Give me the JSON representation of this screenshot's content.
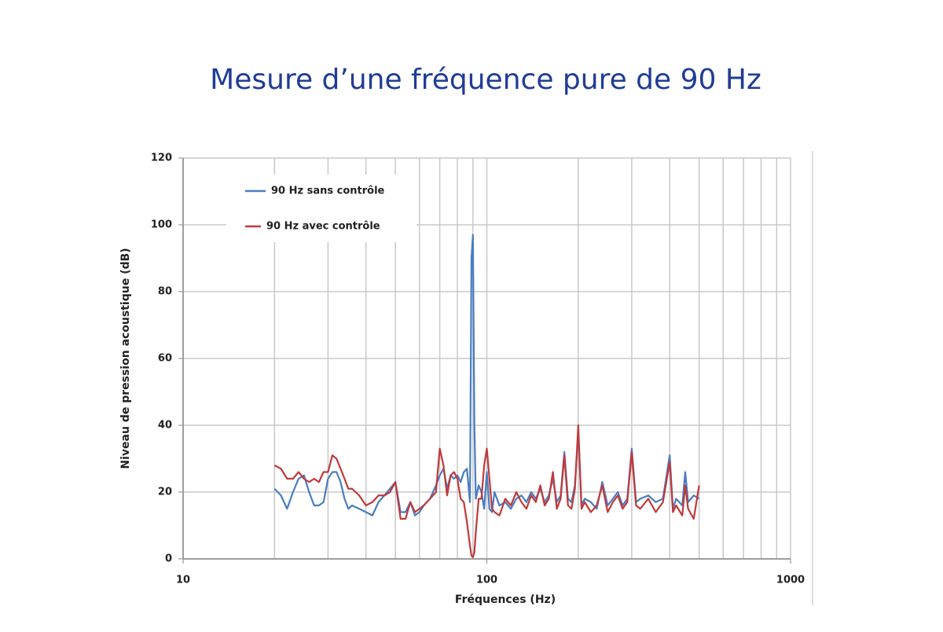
{
  "chart_data": {
    "type": "line",
    "title": "Mesure d’une fréquence pure de 90 Hz",
    "xlabel": "Fréquences (Hz)",
    "ylabel": "Niveau de pression acoustique  (dB)",
    "xscale": "log",
    "xlim": [
      10,
      1000
    ],
    "xticks": [
      10,
      100,
      1000
    ],
    "xgrid_minor": [
      20,
      30,
      40,
      50,
      60,
      70,
      80,
      90,
      200,
      300,
      400,
      500,
      600,
      700,
      800,
      900
    ],
    "ylim": [
      0,
      120
    ],
    "yticks": [
      0,
      20,
      40,
      60,
      80,
      100,
      120
    ],
    "grid": true,
    "legend": "upper left",
    "x": [
      20,
      21,
      22,
      23,
      24,
      25,
      26,
      27,
      28,
      29,
      30,
      31,
      32,
      33,
      34,
      35,
      36,
      38,
      40,
      42,
      44,
      46,
      48,
      50,
      52,
      54,
      56,
      58,
      60,
      62,
      65,
      68,
      70,
      72,
      74,
      76,
      78,
      80,
      82,
      84,
      86,
      88,
      89,
      90,
      91,
      92,
      94,
      96,
      98,
      100,
      102,
      104,
      106,
      110,
      115,
      120,
      125,
      130,
      135,
      140,
      145,
      150,
      155,
      160,
      165,
      170,
      175,
      180,
      185,
      190,
      195,
      200,
      205,
      210,
      220,
      230,
      240,
      250,
      260,
      270,
      280,
      290,
      300,
      310,
      320,
      340,
      360,
      380,
      400,
      410,
      420,
      440,
      450,
      460,
      480,
      500
    ],
    "series": [
      {
        "name": "90 Hz sans contrôle",
        "color": "#4a7cc1",
        "values": [
          21,
          19,
          15,
          20,
          24,
          25,
          20,
          16,
          16,
          17,
          24,
          26,
          26,
          23,
          18,
          15,
          16,
          15,
          14,
          13,
          17,
          19,
          21,
          23,
          14,
          14,
          17,
          13,
          14,
          16,
          18,
          22,
          25,
          27,
          21,
          25,
          24,
          25,
          23,
          26,
          27,
          17,
          90,
          97,
          40,
          18,
          22,
          20,
          15,
          26,
          15,
          14,
          20,
          16,
          17,
          15,
          18,
          19,
          17,
          20,
          18,
          21,
          17,
          19,
          24,
          17,
          19,
          32,
          18,
          17,
          22,
          38,
          16,
          18,
          17,
          15,
          23,
          16,
          18,
          20,
          16,
          18,
          33,
          17,
          18,
          19,
          17,
          18,
          31,
          15,
          18,
          16,
          26,
          17,
          19,
          18
        ]
      },
      {
        "name": "90 Hz avec contrôle",
        "color": "#c0393b",
        "values": [
          28,
          27,
          24,
          24,
          26,
          24,
          23,
          24,
          23,
          26,
          26,
          31,
          30,
          27,
          24,
          21,
          21,
          19,
          16,
          17,
          19,
          19,
          20,
          23,
          12,
          12,
          17,
          14,
          15,
          16,
          18,
          20,
          33,
          28,
          19,
          25,
          26,
          24,
          18,
          17,
          11,
          4,
          1,
          0.5,
          2,
          8,
          18,
          18,
          28,
          33,
          24,
          15,
          14,
          13,
          18,
          16,
          20,
          17,
          15,
          19,
          17,
          22,
          16,
          18,
          26,
          15,
          18,
          31,
          16,
          15,
          21,
          40,
          15,
          17,
          14,
          16,
          22,
          14,
          17,
          19,
          15,
          17,
          32,
          16,
          15,
          18,
          14,
          17,
          29,
          14,
          16,
          13,
          22,
          15,
          12,
          22
        ]
      }
    ]
  }
}
